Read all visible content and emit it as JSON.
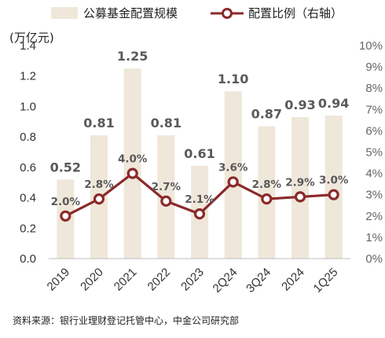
{
  "chart_data": {
    "type": "bar+line",
    "categories": [
      "2019",
      "2020",
      "2021",
      "2022",
      "2023",
      "2Q24",
      "3Q24",
      "2024",
      "1Q25"
    ],
    "series": [
      {
        "name": "公募基金配置规模",
        "type": "bar",
        "axis": "left",
        "color": "#EFE7DA",
        "values": [
          0.52,
          0.81,
          1.25,
          0.81,
          0.61,
          1.1,
          0.87,
          0.93,
          0.94
        ],
        "labels": [
          "0.52",
          "0.81",
          "1.25",
          "0.81",
          "0.61",
          "1.10",
          "0.87",
          "0.93",
          "0.94"
        ]
      },
      {
        "name": "配置比例（右轴）",
        "type": "line",
        "axis": "right",
        "color": "#8B2A2A",
        "values": [
          2.0,
          2.8,
          4.0,
          2.7,
          2.1,
          3.6,
          2.8,
          2.9,
          3.0
        ],
        "labels": [
          "2.0%",
          "2.8%",
          "4.0%",
          "2.7%",
          "2.1%",
          "3.6%",
          "2.8%",
          "2.9%",
          "3.0%"
        ]
      }
    ],
    "ylabel": "(万亿元)",
    "ylim": [
      0,
      1.4
    ],
    "yticks": [
      "0.0",
      "0.2",
      "0.4",
      "0.6",
      "0.8",
      "1.0",
      "1.2",
      "1.4"
    ],
    "y2lim": [
      0,
      10
    ],
    "y2ticks": [
      "0%",
      "1%",
      "2%",
      "3%",
      "4%",
      "5%",
      "6%",
      "7%",
      "8%",
      "9%",
      "10%"
    ],
    "legend_position": "top",
    "grid": false
  },
  "source": "资料来源：银行业理财登记托管中心，中金公司研究部"
}
